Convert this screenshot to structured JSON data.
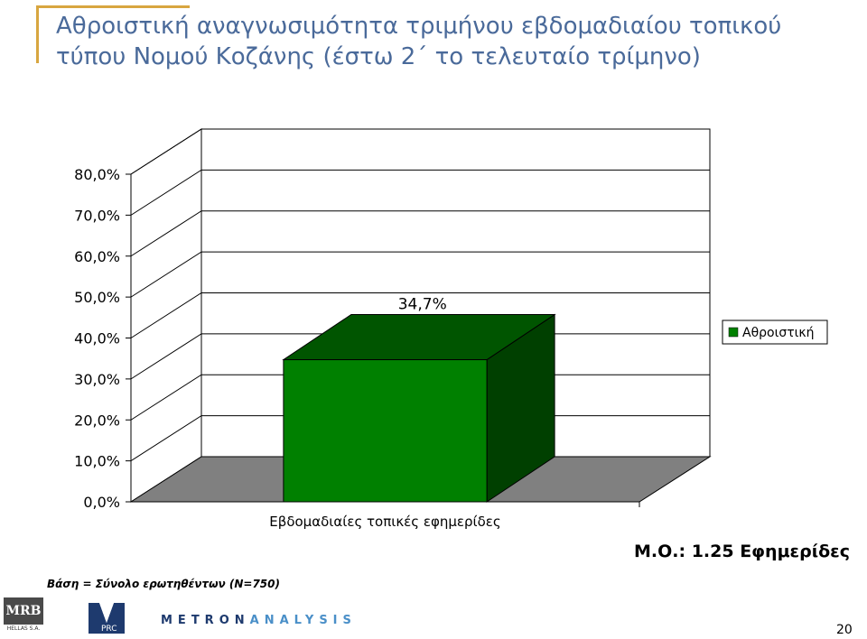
{
  "slide": {
    "title": "Αθροιστική αναγνωσιμότητα τριμήνου εβδομαδιαίου τοπικού τύπου Νομού Κοζάνης (έστω 2΄ το τελευταίο τρίμηνο)",
    "base_note": "Βάση = Σύνολο ερωτηθέντων (N=750)",
    "mean_label": "Μ.Ο.: 1.25 Εφημερίδες",
    "page_number": "20"
  },
  "logos": {
    "mrb": "MRB",
    "mrb_sub": "HELLAS S.A.",
    "vprc": "VPRC",
    "metron_a": "METRON",
    "metron_b": "ANALYSIS"
  },
  "chart_data": {
    "type": "bar",
    "categories": [
      "Εβδομαδιαίες τοπικές εφημερίδες"
    ],
    "series": [
      {
        "name": "Αθροιστική",
        "values": [
          34.7
        ],
        "color": "#008000"
      }
    ],
    "data_labels": [
      "34,7%"
    ],
    "y_ticks": [
      "0,0%",
      "10,0%",
      "20,0%",
      "30,0%",
      "40,0%",
      "50,0%",
      "60,0%",
      "70,0%",
      "80,0%"
    ],
    "ylim": [
      0,
      80
    ],
    "grid": true,
    "three_d": true,
    "legend_position": "right",
    "colors": {
      "bar_front": "#008000",
      "bar_top": "#005500",
      "bar_side": "#004000",
      "floor": "#808080"
    }
  }
}
